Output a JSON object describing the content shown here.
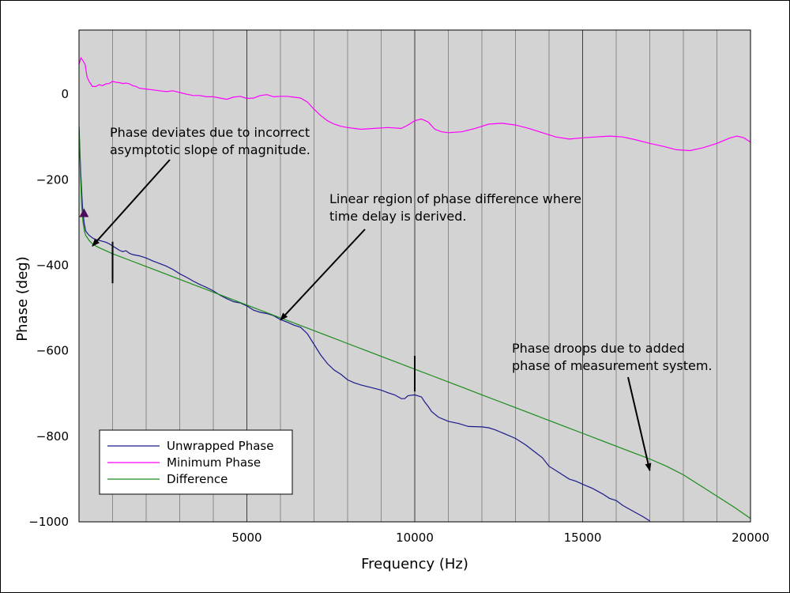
{
  "chart_data": {
    "type": "line",
    "title": "",
    "xlabel": "Frequency (Hz)",
    "ylabel": "Phase (deg)",
    "xlim": [
      0,
      20000
    ],
    "ylim": [
      -1000,
      150
    ],
    "grid": true,
    "legend_position": "lower-left",
    "background": "#d3d3d3",
    "x_ticks": [
      5000,
      10000,
      15000,
      20000
    ],
    "x_tick_labels": [
      "5000",
      "10000",
      "15000",
      "20000"
    ],
    "y_ticks": [
      0,
      -200,
      -400,
      -600,
      -800,
      -1000
    ],
    "y_tick_labels": [
      "0",
      "−200",
      "−400",
      "−600",
      "−800",
      "−1000"
    ],
    "series": [
      {
        "name": "Unwrapped Phase",
        "color": "#1a1a8c",
        "points": [
          [
            0,
            -75
          ],
          [
            50,
            -180
          ],
          [
            100,
            -260
          ],
          [
            150,
            -300
          ],
          [
            200,
            -320
          ],
          [
            300,
            -330
          ],
          [
            400,
            -336
          ],
          [
            500,
            -340
          ],
          [
            600,
            -342
          ],
          [
            700,
            -344
          ],
          [
            800,
            -346
          ],
          [
            900,
            -350
          ],
          [
            1000,
            -355
          ],
          [
            1100,
            -360
          ],
          [
            1200,
            -365
          ],
          [
            1300,
            -368
          ],
          [
            1400,
            -366
          ],
          [
            1500,
            -372
          ],
          [
            1600,
            -375
          ],
          [
            1800,
            -378
          ],
          [
            2000,
            -383
          ],
          [
            2200,
            -390
          ],
          [
            2400,
            -396
          ],
          [
            2600,
            -402
          ],
          [
            2800,
            -410
          ],
          [
            3000,
            -420
          ],
          [
            3200,
            -428
          ],
          [
            3400,
            -437
          ],
          [
            3600,
            -445
          ],
          [
            3800,
            -452
          ],
          [
            4000,
            -460
          ],
          [
            4200,
            -470
          ],
          [
            4400,
            -478
          ],
          [
            4600,
            -485
          ],
          [
            4800,
            -488
          ],
          [
            5000,
            -495
          ],
          [
            5200,
            -505
          ],
          [
            5400,
            -510
          ],
          [
            5600,
            -513
          ],
          [
            5800,
            -518
          ],
          [
            6000,
            -527
          ],
          [
            6200,
            -533
          ],
          [
            6400,
            -540
          ],
          [
            6600,
            -545
          ],
          [
            6800,
            -560
          ],
          [
            7000,
            -585
          ],
          [
            7200,
            -610
          ],
          [
            7400,
            -630
          ],
          [
            7600,
            -645
          ],
          [
            7800,
            -655
          ],
          [
            8000,
            -668
          ],
          [
            8200,
            -675
          ],
          [
            8400,
            -680
          ],
          [
            8600,
            -684
          ],
          [
            8800,
            -688
          ],
          [
            9000,
            -692
          ],
          [
            9200,
            -698
          ],
          [
            9400,
            -703
          ],
          [
            9600,
            -712
          ],
          [
            9700,
            -712
          ],
          [
            9800,
            -705
          ],
          [
            10000,
            -703
          ],
          [
            10200,
            -708
          ],
          [
            10300,
            -720
          ],
          [
            10400,
            -730
          ],
          [
            10500,
            -742
          ],
          [
            10700,
            -755
          ],
          [
            11000,
            -765
          ],
          [
            11300,
            -770
          ],
          [
            11600,
            -777
          ],
          [
            12000,
            -778
          ],
          [
            12200,
            -780
          ],
          [
            12400,
            -785
          ],
          [
            12700,
            -795
          ],
          [
            13000,
            -805
          ],
          [
            13300,
            -820
          ],
          [
            13600,
            -838
          ],
          [
            13800,
            -850
          ],
          [
            14000,
            -870
          ],
          [
            14300,
            -885
          ],
          [
            14600,
            -900
          ],
          [
            14800,
            -905
          ],
          [
            15000,
            -912
          ],
          [
            15300,
            -922
          ],
          [
            15600,
            -935
          ],
          [
            15800,
            -945
          ],
          [
            16000,
            -950
          ],
          [
            16200,
            -962
          ],
          [
            16500,
            -975
          ],
          [
            16800,
            -988
          ],
          [
            17000,
            -998
          ]
        ]
      },
      {
        "name": "Minimum Phase",
        "color": "#ff00ff",
        "points": [
          [
            0,
            70
          ],
          [
            60,
            85
          ],
          [
            120,
            78
          ],
          [
            180,
            70
          ],
          [
            240,
            40
          ],
          [
            300,
            30
          ],
          [
            400,
            18
          ],
          [
            500,
            18
          ],
          [
            600,
            22
          ],
          [
            700,
            20
          ],
          [
            800,
            24
          ],
          [
            900,
            25
          ],
          [
            1000,
            30
          ],
          [
            1100,
            28
          ],
          [
            1200,
            27
          ],
          [
            1300,
            25
          ],
          [
            1400,
            26
          ],
          [
            1500,
            24
          ],
          [
            1600,
            20
          ],
          [
            1700,
            18
          ],
          [
            1800,
            14
          ],
          [
            2000,
            12
          ],
          [
            2200,
            10
          ],
          [
            2400,
            8
          ],
          [
            2600,
            6
          ],
          [
            2800,
            8
          ],
          [
            3000,
            4
          ],
          [
            3200,
            0
          ],
          [
            3400,
            -3
          ],
          [
            3600,
            -3
          ],
          [
            3800,
            -6
          ],
          [
            4000,
            -6
          ],
          [
            4200,
            -9
          ],
          [
            4400,
            -12
          ],
          [
            4600,
            -7
          ],
          [
            4800,
            -5
          ],
          [
            5000,
            -10
          ],
          [
            5200,
            -9
          ],
          [
            5400,
            -3
          ],
          [
            5600,
            -1
          ],
          [
            5800,
            -6
          ],
          [
            6000,
            -5
          ],
          [
            6200,
            -5
          ],
          [
            6400,
            -7
          ],
          [
            6600,
            -9
          ],
          [
            6800,
            -18
          ],
          [
            7000,
            -35
          ],
          [
            7200,
            -50
          ],
          [
            7400,
            -62
          ],
          [
            7600,
            -70
          ],
          [
            7800,
            -75
          ],
          [
            8000,
            -78
          ],
          [
            8400,
            -82
          ],
          [
            8800,
            -80
          ],
          [
            9200,
            -78
          ],
          [
            9600,
            -80
          ],
          [
            9800,
            -72
          ],
          [
            10000,
            -62
          ],
          [
            10200,
            -58
          ],
          [
            10400,
            -65
          ],
          [
            10600,
            -82
          ],
          [
            10800,
            -88
          ],
          [
            11000,
            -90
          ],
          [
            11400,
            -88
          ],
          [
            11800,
            -80
          ],
          [
            12200,
            -70
          ],
          [
            12600,
            -68
          ],
          [
            13000,
            -72
          ],
          [
            13400,
            -80
          ],
          [
            13800,
            -90
          ],
          [
            14200,
            -100
          ],
          [
            14600,
            -105
          ],
          [
            15000,
            -102
          ],
          [
            15400,
            -100
          ],
          [
            15800,
            -98
          ],
          [
            16200,
            -100
          ],
          [
            16600,
            -107
          ],
          [
            17000,
            -115
          ],
          [
            17400,
            -122
          ],
          [
            17800,
            -130
          ],
          [
            18200,
            -132
          ],
          [
            18600,
            -125
          ],
          [
            19000,
            -115
          ],
          [
            19400,
            -102
          ],
          [
            19600,
            -98
          ],
          [
            19800,
            -102
          ],
          [
            20000,
            -112
          ]
        ]
      },
      {
        "name": "Difference",
        "color": "#1a8c1a",
        "points": [
          [
            0,
            -80
          ],
          [
            40,
            -180
          ],
          [
            80,
            -260
          ],
          [
            120,
            -300
          ],
          [
            160,
            -320
          ],
          [
            200,
            -330
          ],
          [
            300,
            -342
          ],
          [
            400,
            -350
          ],
          [
            500,
            -355
          ],
          [
            600,
            -359
          ],
          [
            800,
            -366
          ],
          [
            1000,
            -373
          ],
          [
            1500,
            -388
          ],
          [
            2000,
            -403
          ],
          [
            2500,
            -418
          ],
          [
            3000,
            -433
          ],
          [
            3500,
            -448
          ],
          [
            4000,
            -463
          ],
          [
            4500,
            -478
          ],
          [
            5000,
            -493
          ],
          [
            5500,
            -508
          ],
          [
            6000,
            -523
          ],
          [
            6500,
            -538
          ],
          [
            7000,
            -553
          ],
          [
            7500,
            -568
          ],
          [
            8000,
            -583
          ],
          [
            8500,
            -598
          ],
          [
            9000,
            -613
          ],
          [
            9500,
            -628
          ],
          [
            10000,
            -643
          ],
          [
            10500,
            -658
          ],
          [
            11000,
            -673
          ],
          [
            11500,
            -688
          ],
          [
            12000,
            -703
          ],
          [
            12500,
            -718
          ],
          [
            13000,
            -733
          ],
          [
            13500,
            -748
          ],
          [
            14000,
            -763
          ],
          [
            14500,
            -778
          ],
          [
            15000,
            -793
          ],
          [
            15500,
            -808
          ],
          [
            16000,
            -823
          ],
          [
            16500,
            -838
          ],
          [
            17000,
            -853
          ],
          [
            17500,
            -870
          ],
          [
            18000,
            -890
          ],
          [
            18500,
            -915
          ],
          [
            19000,
            -940
          ],
          [
            19500,
            -965
          ],
          [
            20000,
            -992
          ]
        ]
      }
    ],
    "markers": [
      {
        "type": "triangle",
        "color": "#4b0c5a",
        "x": 150,
        "y": -278
      },
      {
        "type": "vline",
        "color": "#000000",
        "x": 1000,
        "y1": -345,
        "y2": -442
      },
      {
        "type": "vline",
        "color": "#000000",
        "x": 10000,
        "y1": -612,
        "y2": -695
      }
    ],
    "annotations": [
      {
        "lines": [
          "Phase deviates due to incorrect",
          "asymptotic slope of magnitude."
        ],
        "arrow_to": [
          400,
          -355
        ]
      },
      {
        "lines": [
          "Linear region of phase difference where",
          "time delay is derived."
        ],
        "arrow_to": [
          6000,
          -528
        ]
      },
      {
        "lines": [
          "Phase droops due to added",
          "phase of measurement system."
        ],
        "arrow_to": [
          17000,
          -880
        ]
      }
    ]
  }
}
